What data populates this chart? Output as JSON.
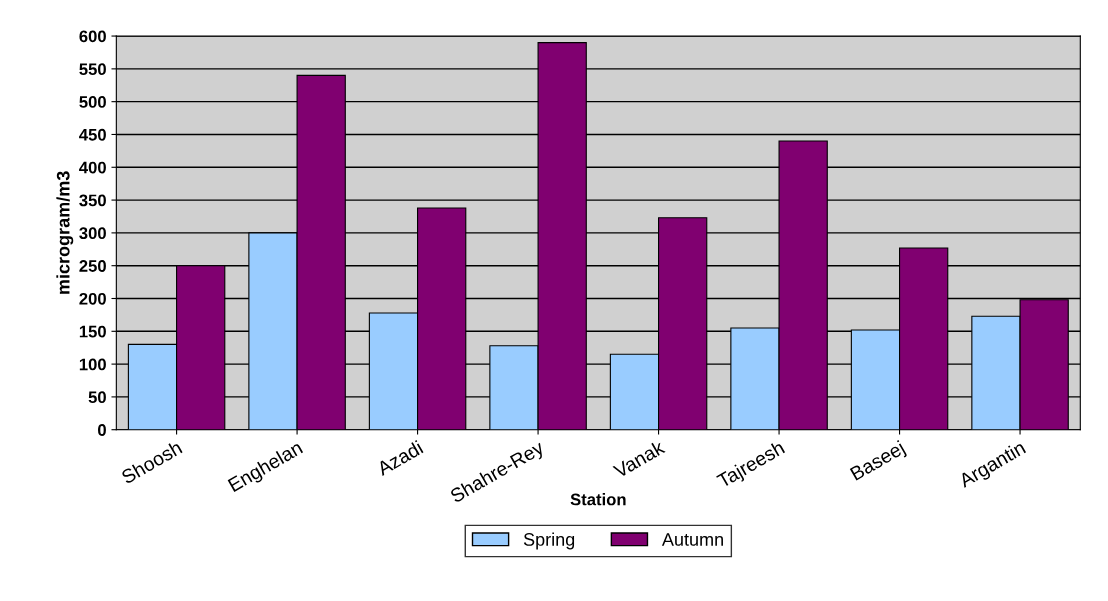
{
  "chart_data": {
    "type": "bar",
    "xlabel": "Station",
    "ylabel": "microgram/m3",
    "categories": [
      "Shoosh",
      "Enghelan",
      "Azadi",
      "Shahre-Rey",
      "Vanak",
      "Tajreesh",
      "Baseej",
      "Argantin"
    ],
    "series": [
      {
        "name": "Spring",
        "color": "#99ccff",
        "values": [
          130,
          300,
          178,
          128,
          115,
          155,
          152,
          173
        ]
      },
      {
        "name": "Autumn",
        "color": "#800070",
        "values": [
          250,
          540,
          338,
          590,
          323,
          440,
          277,
          198
        ]
      }
    ],
    "ylim": [
      0,
      600
    ],
    "yticks": [
      0,
      50,
      100,
      150,
      200,
      250,
      300,
      350,
      400,
      450,
      500,
      550,
      600
    ],
    "grid": "y",
    "legend": "bottom"
  }
}
